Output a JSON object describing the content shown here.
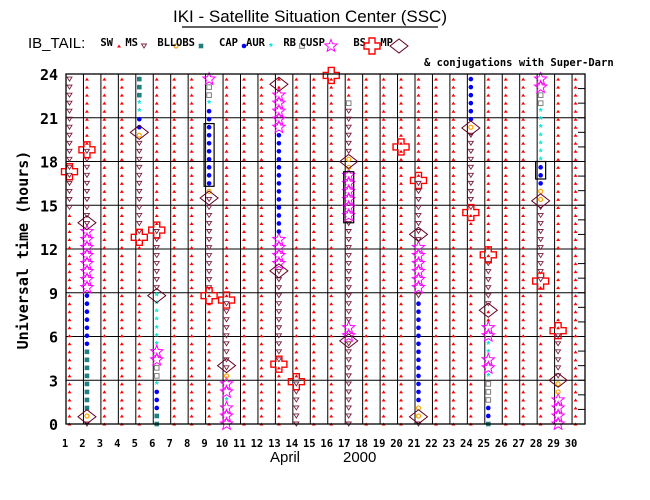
{
  "chart_data": {
    "type": "scatter",
    "title": "IKI - Satellite Situation Center (SSC)",
    "region_label": "IB_TAIL:",
    "legend": [
      {
        "label": "SW",
        "color": "#ff0000"
      },
      {
        "label": "MS",
        "color": "#800040"
      },
      {
        "label": "BL",
        "color": "#ffa500"
      },
      {
        "label": "LOBS",
        "color": "#208080"
      },
      {
        "label": "CAP",
        "color": "#0000ff"
      },
      {
        "label": "AUR",
        "color": "#00e0e0"
      },
      {
        "label": "RB",
        "color": "#808080"
      },
      {
        "label": "CUSP",
        "color": "#ff00ff"
      },
      {
        "label": "BS",
        "color": "#ff0000"
      },
      {
        "label": "MP",
        "color": "#600020"
      }
    ],
    "legend_note": "& conjugations with Super-Darn",
    "ylabel": "Universal time (hours)",
    "xlabel_month": "April",
    "xlabel_year": "2000",
    "ylim": [
      0,
      24
    ],
    "yticks": [
      0,
      3,
      6,
      9,
      12,
      15,
      18,
      21,
      24
    ],
    "xticks": [
      1,
      2,
      3,
      4,
      5,
      6,
      7,
      8,
      9,
      10,
      11,
      12,
      13,
      14,
      15,
      16,
      17,
      18,
      19,
      20,
      21,
      22,
      23,
      24,
      25,
      26,
      27,
      28,
      29,
      30
    ],
    "grid": true,
    "default_region": "SW",
    "segments": [
      {
        "day": 1,
        "type": "BL",
        "from": 14.5,
        "to": 24
      },
      {
        "day": 1,
        "type": "MP",
        "at": 17.3
      },
      {
        "day": 2,
        "type": "BL",
        "from": 0,
        "to": 1
      },
      {
        "day": 2,
        "type": "LOBS",
        "from": 0.3,
        "to": 1.5
      },
      {
        "day": 2,
        "type": "CAP",
        "from": 1,
        "to": 5
      },
      {
        "day": 2,
        "type": "AUR",
        "from": 5,
        "to": 9
      },
      {
        "day": 2,
        "type": "BS",
        "from": 9,
        "to": 13.3
      },
      {
        "day": 2,
        "type": "BL",
        "from": 13.3,
        "to": 18.8
      },
      {
        "day": 2,
        "type": "MP",
        "at": 18.8
      },
      {
        "day": 2,
        "type": "CONJ",
        "at": 0.5
      },
      {
        "day": 2,
        "type": "CONJ",
        "at": 13.8
      },
      {
        "day": 5,
        "type": "BL",
        "from": 13,
        "to": 19.5
      },
      {
        "day": 5,
        "type": "LOBS",
        "from": 19.5,
        "to": 20.3
      },
      {
        "day": 5,
        "type": "AUR",
        "from": 20.3,
        "to": 21.3
      },
      {
        "day": 5,
        "type": "RB",
        "from": 21.3,
        "to": 22.3
      },
      {
        "day": 5,
        "type": "CAP",
        "from": 22.3,
        "to": 24
      },
      {
        "day": 5,
        "type": "MP",
        "at": 12.8
      },
      {
        "day": 5,
        "type": "CONJ",
        "at": 20
      },
      {
        "day": 6,
        "type": "CAP",
        "from": 0,
        "to": 0.6
      },
      {
        "day": 6,
        "type": "AUR",
        "from": 0.6,
        "to": 2.5
      },
      {
        "day": 6,
        "type": "RB",
        "from": 2.5,
        "to": 3
      },
      {
        "day": 6,
        "type": "CUSP",
        "from": 3,
        "to": 4.3
      },
      {
        "day": 6,
        "type": "BS",
        "from": 4.3,
        "to": 5
      },
      {
        "day": 6,
        "type": "RB",
        "from": 5,
        "to": 8.8
      },
      {
        "day": 6,
        "type": "BL",
        "from": 8.8,
        "to": 13.3
      },
      {
        "day": 6,
        "type": "MP",
        "at": 13.3
      },
      {
        "day": 6,
        "type": "CONJ",
        "at": 8.8
      },
      {
        "day": 9,
        "type": "BL",
        "from": 9,
        "to": 15.5
      },
      {
        "day": 9,
        "type": "LOBS",
        "from": 15.5,
        "to": 16.2
      },
      {
        "day": 9,
        "type": "AUR",
        "from": 16.2,
        "to": 21.8
      },
      {
        "day": 9,
        "type": "RB",
        "from": 21.8,
        "to": 22.3
      },
      {
        "day": 9,
        "type": "CUSP",
        "from": 22.3,
        "to": 23.5
      },
      {
        "day": 9,
        "type": "BS",
        "from": 23.5,
        "to": 24
      },
      {
        "day": 9,
        "type": "MP",
        "at": 8.8
      },
      {
        "day": 9,
        "type": "CONJ",
        "at": 15.5
      },
      {
        "day": 9,
        "type": "BOX",
        "from": 16.3,
        "to": 20.6
      },
      {
        "day": 10,
        "type": "BS",
        "from": 0,
        "to": 1.5
      },
      {
        "day": 10,
        "type": "RB",
        "from": 1.5,
        "to": 2.2
      },
      {
        "day": 10,
        "type": "BS",
        "from": 2.2,
        "to": 3.2
      },
      {
        "day": 10,
        "type": "LOBS",
        "from": 3.2,
        "to": 3.8
      },
      {
        "day": 10,
        "type": "BL",
        "from": 3.8,
        "to": 8.5
      },
      {
        "day": 10,
        "type": "MP",
        "at": 8.5
      },
      {
        "day": 10,
        "type": "CONJ",
        "at": 4
      },
      {
        "day": 13,
        "type": "BL",
        "from": 4,
        "to": 10.5
      },
      {
        "day": 13,
        "type": "BS",
        "from": 10.5,
        "to": 13
      },
      {
        "day": 13,
        "type": "AUR",
        "from": 13,
        "to": 20
      },
      {
        "day": 13,
        "type": "BS",
        "from": 20,
        "to": 23
      },
      {
        "day": 13,
        "type": "MP",
        "at": 4.1
      },
      {
        "day": 13,
        "type": "CONJ",
        "at": 10.5
      },
      {
        "day": 13,
        "type": "CONJ",
        "at": 23.3
      },
      {
        "day": 14,
        "type": "BL",
        "from": 0,
        "to": 2.8
      },
      {
        "day": 14,
        "type": "MP",
        "at": 2.9
      },
      {
        "day": 16,
        "type": "MP",
        "at": 23.9
      },
      {
        "day": 17,
        "type": "BL",
        "from": 0,
        "to": 6
      },
      {
        "day": 17,
        "type": "BS",
        "from": 6,
        "to": 6.8
      },
      {
        "day": 17,
        "type": "BL",
        "from": 6.8,
        "to": 14
      },
      {
        "day": 17,
        "type": "BS",
        "from": 14,
        "to": 17.5
      },
      {
        "day": 17,
        "type": "LOBS",
        "from": 17.5,
        "to": 18.3
      },
      {
        "day": 17,
        "type": "BL",
        "from": 18.3,
        "to": 21.8
      },
      {
        "day": 17,
        "type": "CUSP",
        "from": 21.8,
        "to": 22.3
      },
      {
        "day": 17,
        "type": "CONJ",
        "at": 5.7
      },
      {
        "day": 17,
        "type": "CONJ",
        "at": 18
      },
      {
        "day": 17,
        "type": "BOX",
        "from": 13.8,
        "to": 17.3
      },
      {
        "day": 20,
        "type": "MP",
        "at": 19
      },
      {
        "day": 21,
        "type": "BL",
        "from": 0,
        "to": 0.3
      },
      {
        "day": 21,
        "type": "LOBS",
        "from": 0.3,
        "to": 1.6
      },
      {
        "day": 21,
        "type": "AUR",
        "from": 1.6,
        "to": 8.6
      },
      {
        "day": 21,
        "type": "BL",
        "from": 8.6,
        "to": 9
      },
      {
        "day": 21,
        "type": "BS",
        "from": 9,
        "to": 12.5
      },
      {
        "day": 21,
        "type": "BL",
        "from": 12.5,
        "to": 16.7
      },
      {
        "day": 21,
        "type": "MP",
        "at": 16.7
      },
      {
        "day": 21,
        "type": "CONJ",
        "at": 0.5
      },
      {
        "day": 21,
        "type": "CONJ",
        "at": 13
      },
      {
        "day": 24,
        "type": "MP",
        "at": 14.5
      },
      {
        "day": 24,
        "type": "BL",
        "from": 14.5,
        "to": 20
      },
      {
        "day": 24,
        "type": "LOBS",
        "from": 20,
        "to": 20.8
      },
      {
        "day": 24,
        "type": "AUR",
        "from": 20.8,
        "to": 24
      },
      {
        "day": 24,
        "type": "CONJ",
        "at": 20.3
      },
      {
        "day": 25,
        "type": "CAP",
        "from": 0,
        "to": 0.3
      },
      {
        "day": 25,
        "type": "AUR",
        "from": 0.3,
        "to": 1.6
      },
      {
        "day": 25,
        "type": "CUSP",
        "from": 1.6,
        "to": 3
      },
      {
        "day": 25,
        "type": "RB",
        "from": 3,
        "to": 6
      },
      {
        "day": 25,
        "type": "BS",
        "from": 3.5,
        "to": 4.5
      },
      {
        "day": 25,
        "type": "BS",
        "from": 6,
        "to": 7
      },
      {
        "day": 25,
        "type": "BL",
        "from": 7.8,
        "to": 11.5
      },
      {
        "day": 25,
        "type": "MP",
        "at": 11.6
      },
      {
        "day": 25,
        "type": "CONJ",
        "at": 7.8
      },
      {
        "day": 28,
        "type": "MP",
        "at": 9.8
      },
      {
        "day": 28,
        "type": "BL",
        "from": 9.8,
        "to": 15.2
      },
      {
        "day": 28,
        "type": "LOBS",
        "from": 15.2,
        "to": 16.3
      },
      {
        "day": 28,
        "type": "AUR",
        "from": 16.3,
        "to": 18
      },
      {
        "day": 28,
        "type": "RB",
        "from": 18,
        "to": 21.5
      },
      {
        "day": 28,
        "type": "CUSP",
        "from": 21.5,
        "to": 23
      },
      {
        "day": 28,
        "type": "BS",
        "from": 23,
        "to": 24
      },
      {
        "day": 28,
        "type": "CONJ",
        "at": 15.3
      },
      {
        "day": 28,
        "type": "BOX",
        "from": 16.8,
        "to": 18
      },
      {
        "day": 29,
        "type": "BS",
        "from": 0,
        "to": 1.8
      },
      {
        "day": 29,
        "type": "LOBS",
        "from": 1.8,
        "to": 2.8
      },
      {
        "day": 29,
        "type": "BL",
        "from": 2.8,
        "to": 6.2
      },
      {
        "day": 29,
        "type": "MP",
        "at": 6.4
      },
      {
        "day": 29,
        "type": "CONJ",
        "at": 3
      }
    ]
  }
}
